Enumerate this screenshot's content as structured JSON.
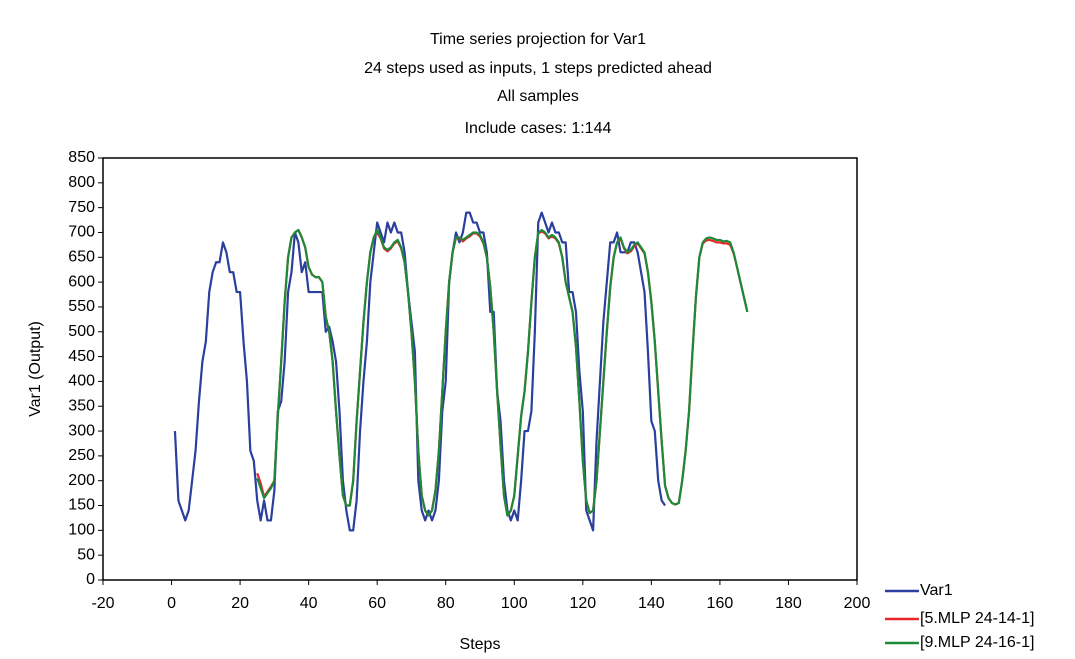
{
  "chart_data": {
    "type": "line",
    "title": "Time series projection for Var1",
    "subtitle": "24 steps used as inputs, 1 steps predicted ahead",
    "subtitle2": "All samples",
    "annotation": "Include cases: 1:144",
    "x_label": "Steps",
    "y_label": "Var1 (Output)",
    "xlim": [
      -20,
      200
    ],
    "xticks": [
      -20,
      0,
      20,
      40,
      60,
      80,
      100,
      120,
      140,
      160,
      180,
      200
    ],
    "ylim": [
      0,
      850
    ],
    "yticks": [
      0,
      50,
      100,
      150,
      200,
      250,
      300,
      350,
      400,
      450,
      500,
      550,
      600,
      650,
      700,
      750,
      800,
      850
    ],
    "grid": false,
    "legend": "bottom-right",
    "x": [
      1,
      2,
      3,
      4,
      5,
      6,
      7,
      8,
      9,
      10,
      11,
      12,
      13,
      14,
      15,
      16,
      17,
      18,
      19,
      20,
      21,
      22,
      23,
      24,
      25,
      26,
      27,
      28,
      29,
      30,
      31,
      32,
      33,
      34,
      35,
      36,
      37,
      38,
      39,
      40,
      41,
      42,
      43,
      44,
      45,
      46,
      47,
      48,
      49,
      50,
      51,
      52,
      53,
      54,
      55,
      56,
      57,
      58,
      59,
      60,
      61,
      62,
      63,
      64,
      65,
      66,
      67,
      68,
      69,
      70,
      71,
      72,
      73,
      74,
      75,
      76,
      77,
      78,
      79,
      80,
      81,
      82,
      83,
      84,
      85,
      86,
      87,
      88,
      89,
      90,
      91,
      92,
      93,
      94,
      95,
      96,
      97,
      98,
      99,
      100,
      101,
      102,
      103,
      104,
      105,
      106,
      107,
      108,
      109,
      110,
      111,
      112,
      113,
      114,
      115,
      116,
      117,
      118,
      119,
      120,
      121,
      122,
      123,
      124,
      125,
      126,
      127,
      128,
      129,
      130,
      131,
      132,
      133,
      134,
      135,
      136,
      137,
      138,
      139,
      140,
      141,
      142,
      143,
      144,
      145,
      146,
      147,
      148,
      149,
      150,
      151,
      152,
      153,
      154,
      155,
      156,
      157,
      158,
      159,
      160,
      161,
      162,
      163,
      164,
      165,
      166,
      167,
      168
    ],
    "series": [
      {
        "name": "Var1",
        "color": "#2a3f9e",
        "values": [
          300,
          160,
          140,
          120,
          140,
          200,
          260,
          360,
          440,
          480,
          580,
          620,
          640,
          640,
          680,
          660,
          620,
          620,
          580,
          580,
          480,
          400,
          260,
          240,
          160,
          120,
          160,
          120,
          120,
          180,
          340,
          360,
          440,
          580,
          620,
          700,
          680,
          620,
          640,
          580,
          580,
          580,
          580,
          580,
          500,
          510,
          480,
          440,
          340,
          200,
          140,
          100,
          100,
          160,
          300,
          400,
          480,
          600,
          660,
          720,
          700,
          680,
          720,
          700,
          720,
          700,
          700,
          660,
          580,
          520,
          460,
          200,
          140,
          120,
          140,
          120,
          140,
          200,
          340,
          400,
          600,
          660,
          700,
          680,
          700,
          740,
          740,
          720,
          720,
          700,
          700,
          660,
          540,
          540,
          380,
          320,
          200,
          140,
          120,
          140,
          120,
          200,
          300,
          300,
          340,
          500,
          720,
          740,
          720,
          700,
          720,
          700,
          700,
          680,
          680,
          580,
          580,
          540,
          420,
          340,
          140,
          120,
          100,
          280,
          400,
          520,
          600,
          680,
          680,
          700,
          660,
          660,
          660,
          680,
          680,
          660,
          620,
          580,
          460,
          320,
          300,
          200,
          160,
          150,
          null,
          null,
          null,
          null,
          null,
          null,
          null,
          null,
          null,
          null,
          null,
          null,
          null,
          null,
          null,
          null,
          null,
          null,
          null,
          null,
          null,
          null,
          null,
          null
        ]
      },
      {
        "name": "[5.MLP 24-14-1]",
        "color": "#e8262a",
        "values": [
          null,
          null,
          null,
          null,
          null,
          null,
          null,
          null,
          null,
          null,
          null,
          null,
          null,
          null,
          null,
          null,
          null,
          null,
          null,
          null,
          null,
          null,
          null,
          null,
          215,
          195,
          168,
          178,
          188,
          200,
          330,
          440,
          560,
          650,
          690,
          700,
          705,
          690,
          670,
          630,
          615,
          610,
          610,
          600,
          530,
          500,
          440,
          340,
          250,
          170,
          150,
          150,
          200,
          320,
          420,
          520,
          600,
          660,
          690,
          700,
          688,
          668,
          662,
          668,
          678,
          682,
          668,
          640,
          580,
          500,
          400,
          260,
          170,
          140,
          130,
          140,
          180,
          260,
          380,
          500,
          600,
          660,
          690,
          688,
          682,
          688,
          692,
          698,
          698,
          692,
          678,
          650,
          590,
          500,
          380,
          270,
          170,
          130,
          140,
          170,
          250,
          330,
          380,
          460,
          560,
          650,
          698,
          702,
          698,
          688,
          692,
          688,
          678,
          650,
          600,
          570,
          540,
          470,
          360,
          240,
          160,
          135,
          140,
          200,
          300,
          400,
          500,
          590,
          650,
          680,
          688,
          668,
          658,
          662,
          672,
          678,
          668,
          658,
          620,
          560,
          480,
          380,
          280,
          190,
          165,
          155,
          152,
          155,
          200,
          260,
          340,
          460,
          570,
          650,
          678,
          684,
          685,
          683,
          680,
          680,
          678,
          678,
          675,
          658,
          630,
          600,
          570,
          540
        ]
      },
      {
        "name": "[9.MLP 24-16-1]",
        "color": "#1d8a3a",
        "values": [
          null,
          null,
          null,
          null,
          null,
          null,
          null,
          null,
          null,
          null,
          null,
          null,
          null,
          null,
          null,
          null,
          null,
          null,
          null,
          null,
          null,
          null,
          null,
          null,
          205,
          185,
          165,
          175,
          185,
          200,
          330,
          440,
          560,
          650,
          690,
          700,
          705,
          690,
          670,
          630,
          615,
          610,
          610,
          600,
          530,
          500,
          440,
          340,
          250,
          170,
          150,
          150,
          200,
          320,
          420,
          520,
          600,
          660,
          690,
          705,
          690,
          670,
          665,
          670,
          680,
          685,
          670,
          640,
          580,
          500,
          400,
          260,
          170,
          140,
          130,
          140,
          180,
          260,
          380,
          500,
          600,
          660,
          690,
          690,
          685,
          690,
          695,
          700,
          700,
          695,
          680,
          650,
          590,
          500,
          380,
          270,
          170,
          130,
          140,
          170,
          250,
          330,
          380,
          460,
          560,
          650,
          700,
          705,
          700,
          690,
          695,
          690,
          680,
          650,
          600,
          570,
          540,
          470,
          360,
          240,
          160,
          135,
          140,
          200,
          300,
          400,
          500,
          590,
          650,
          680,
          690,
          670,
          660,
          665,
          675,
          680,
          670,
          660,
          620,
          560,
          480,
          380,
          280,
          190,
          165,
          155,
          152,
          155,
          200,
          260,
          340,
          460,
          570,
          650,
          680,
          688,
          690,
          688,
          685,
          685,
          682,
          683,
          680,
          660,
          630,
          600,
          570,
          540
        ]
      }
    ]
  }
}
